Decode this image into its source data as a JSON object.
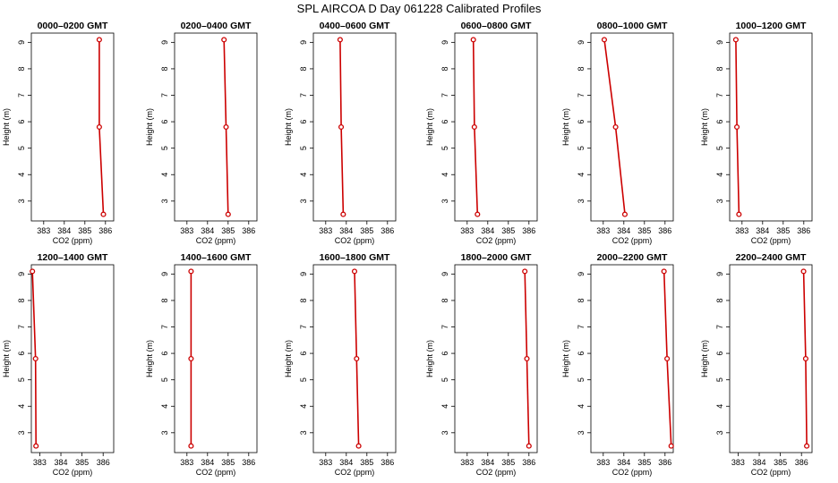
{
  "figure": {
    "title": "SPL AIRCOA D  Day 061228  Calibrated Profiles",
    "xlabel": "CO2 (ppm)",
    "ylabel": "Height (m)",
    "series_color": "#cc0000"
  },
  "chart_data": [
    {
      "type": "line",
      "title": "0000–0200 GMT",
      "xlim": [
        382.4,
        386.4
      ],
      "ylim": [
        2.25,
        9.35
      ],
      "xticks": [
        383,
        384,
        385,
        386
      ],
      "yticks": [
        3,
        4,
        5,
        6,
        7,
        8,
        9
      ],
      "xlabel": "CO2 (ppm)",
      "ylabel": "Height (m)",
      "x": [
        385.7,
        385.7,
        385.9
      ],
      "y": [
        9.1,
        5.8,
        2.5
      ]
    },
    {
      "type": "line",
      "title": "0200–0400 GMT",
      "xlim": [
        382.4,
        386.4
      ],
      "ylim": [
        2.25,
        9.35
      ],
      "xticks": [
        383,
        384,
        385,
        386
      ],
      "yticks": [
        3,
        4,
        5,
        6,
        7,
        8,
        9
      ],
      "xlabel": "CO2 (ppm)",
      "ylabel": "Height (m)",
      "x": [
        384.8,
        384.9,
        385.0
      ],
      "y": [
        9.1,
        5.8,
        2.5
      ]
    },
    {
      "type": "line",
      "title": "0400–0600 GMT",
      "xlim": [
        382.4,
        386.4
      ],
      "ylim": [
        2.25,
        9.35
      ],
      "xticks": [
        383,
        384,
        385,
        386
      ],
      "yticks": [
        3,
        4,
        5,
        6,
        7,
        8,
        9
      ],
      "xlabel": "CO2 (ppm)",
      "ylabel": "Height (m)",
      "x": [
        383.7,
        383.75,
        383.85
      ],
      "y": [
        9.1,
        5.8,
        2.5
      ]
    },
    {
      "type": "line",
      "title": "0600–0800 GMT",
      "xlim": [
        382.4,
        386.4
      ],
      "ylim": [
        2.25,
        9.35
      ],
      "xticks": [
        383,
        384,
        385,
        386
      ],
      "yticks": [
        3,
        4,
        5,
        6,
        7,
        8,
        9
      ],
      "xlabel": "CO2 (ppm)",
      "ylabel": "Height (m)",
      "x": [
        383.3,
        383.35,
        383.5
      ],
      "y": [
        9.1,
        5.8,
        2.5
      ]
    },
    {
      "type": "line",
      "title": "0800–1000 GMT",
      "xlim": [
        382.4,
        386.4
      ],
      "ylim": [
        2.25,
        9.35
      ],
      "xticks": [
        383,
        384,
        385,
        386
      ],
      "yticks": [
        3,
        4,
        5,
        6,
        7,
        8,
        9
      ],
      "xlabel": "CO2 (ppm)",
      "ylabel": "Height (m)",
      "x": [
        383.05,
        383.6,
        384.05
      ],
      "y": [
        9.1,
        5.8,
        2.5
      ]
    },
    {
      "type": "line",
      "title": "1000–1200 GMT",
      "xlim": [
        382.4,
        386.4
      ],
      "ylim": [
        2.25,
        9.35
      ],
      "xticks": [
        383,
        384,
        385,
        386
      ],
      "yticks": [
        3,
        4,
        5,
        6,
        7,
        8,
        9
      ],
      "xlabel": "CO2 (ppm)",
      "ylabel": "Height (m)",
      "x": [
        382.7,
        382.75,
        382.85
      ],
      "y": [
        9.1,
        5.8,
        2.5
      ]
    },
    {
      "type": "line",
      "title": "1200–1400 GMT",
      "xlim": [
        382.6,
        386.5
      ],
      "ylim": [
        2.25,
        9.35
      ],
      "xticks": [
        383,
        384,
        385,
        386
      ],
      "yticks": [
        3,
        4,
        5,
        6,
        7,
        8,
        9
      ],
      "xlabel": "CO2 (ppm)",
      "ylabel": "Height (m)",
      "x": [
        382.65,
        382.8,
        382.82
      ],
      "y": [
        9.1,
        5.8,
        2.5
      ]
    },
    {
      "type": "line",
      "title": "1400–1600 GMT",
      "xlim": [
        382.4,
        386.4
      ],
      "ylim": [
        2.25,
        9.35
      ],
      "xticks": [
        383,
        384,
        385,
        386
      ],
      "yticks": [
        3,
        4,
        5,
        6,
        7,
        8,
        9
      ],
      "xlabel": "CO2 (ppm)",
      "ylabel": "Height (m)",
      "x": [
        383.2,
        383.2,
        383.2
      ],
      "y": [
        9.1,
        5.8,
        2.5
      ]
    },
    {
      "type": "line",
      "title": "1600–1800 GMT",
      "xlim": [
        382.4,
        386.4
      ],
      "ylim": [
        2.25,
        9.35
      ],
      "xticks": [
        383,
        384,
        385,
        386
      ],
      "yticks": [
        3,
        4,
        5,
        6,
        7,
        8,
        9
      ],
      "xlabel": "CO2 (ppm)",
      "ylabel": "Height (m)",
      "x": [
        384.4,
        384.5,
        384.6
      ],
      "y": [
        9.1,
        5.8,
        2.5
      ]
    },
    {
      "type": "line",
      "title": "1800–2000 GMT",
      "xlim": [
        382.4,
        386.4
      ],
      "ylim": [
        2.25,
        9.35
      ],
      "xticks": [
        383,
        384,
        385,
        386
      ],
      "yticks": [
        3,
        4,
        5,
        6,
        7,
        8,
        9
      ],
      "xlabel": "CO2 (ppm)",
      "ylabel": "Height (m)",
      "x": [
        385.8,
        385.9,
        386.0
      ],
      "y": [
        9.1,
        5.8,
        2.5
      ]
    },
    {
      "type": "line",
      "title": "2000–2200 GMT",
      "xlim": [
        382.4,
        386.4
      ],
      "ylim": [
        2.25,
        9.35
      ],
      "xticks": [
        383,
        384,
        385,
        386
      ],
      "yticks": [
        3,
        4,
        5,
        6,
        7,
        8,
        9
      ],
      "xlabel": "CO2 (ppm)",
      "ylabel": "Height (m)",
      "x": [
        385.95,
        386.1,
        386.3
      ],
      "y": [
        9.1,
        5.8,
        2.5
      ]
    },
    {
      "type": "line",
      "title": "2200–2400 GMT",
      "xlim": [
        382.6,
        386.5
      ],
      "ylim": [
        2.25,
        9.35
      ],
      "xticks": [
        383,
        384,
        385,
        386
      ],
      "yticks": [
        3,
        4,
        5,
        6,
        7,
        8,
        9
      ],
      "xlabel": "CO2 (ppm)",
      "ylabel": "Height (m)",
      "x": [
        386.1,
        386.2,
        386.25
      ],
      "y": [
        9.1,
        5.8,
        2.5
      ]
    }
  ]
}
